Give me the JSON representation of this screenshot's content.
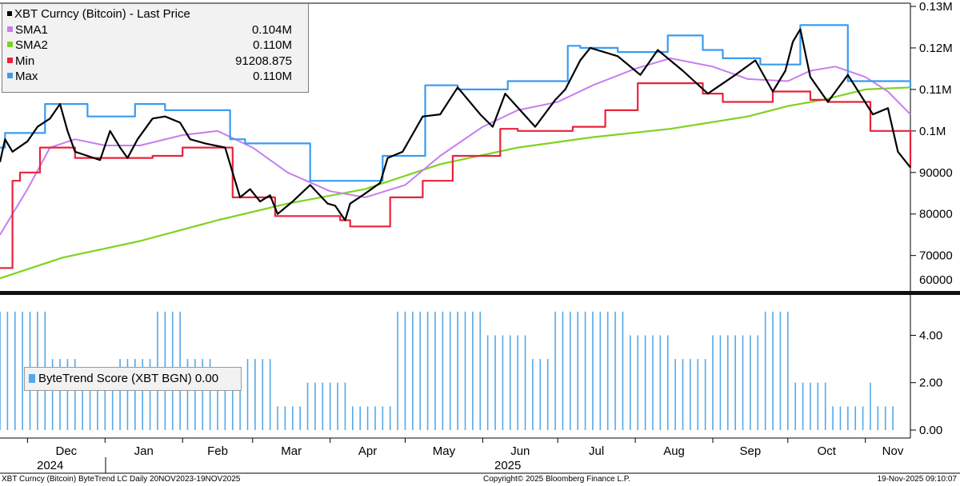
{
  "chart_data": [
    {
      "type": "line",
      "title": "XBT Curncy (Bitcoin) - Last Price",
      "y_scale": "linear",
      "ylim": [
        58000,
        130000
      ],
      "y_ticks": [
        60000,
        70000,
        80000,
        90000,
        100000,
        110000,
        120000,
        130000
      ],
      "y_tick_labels": [
        "60000",
        "70000",
        "80000",
        "90000",
        "0.1M",
        "0.11M",
        "0.12M",
        "0.13M"
      ],
      "grid": false,
      "legend_position": "top-left",
      "series": [
        {
          "name": "XBT Curncy (Bitcoin) - Last Price",
          "legend_value": "",
          "color": "#000000",
          "x": [
            "2024-11-20",
            "2024-11-22",
            "2024-11-25",
            "2024-12-01",
            "2024-12-05",
            "2024-12-10",
            "2024-12-14",
            "2024-12-17",
            "2024-12-20",
            "2024-12-25",
            "2024-12-30",
            "2025-01-03",
            "2025-01-07",
            "2025-01-10",
            "2025-01-14",
            "2025-01-20",
            "2025-01-25",
            "2025-01-31",
            "2025-02-04",
            "2025-02-10",
            "2025-02-18",
            "2025-02-24",
            "2025-02-28",
            "2025-03-04",
            "2025-03-08",
            "2025-03-11",
            "2025-03-17",
            "2025-03-24",
            "2025-03-31",
            "2025-04-03",
            "2025-04-07",
            "2025-04-09",
            "2025-04-14",
            "2025-04-21",
            "2025-04-24",
            "2025-04-30",
            "2025-05-08",
            "2025-05-15",
            "2025-05-22",
            "2025-05-31",
            "2025-06-05",
            "2025-06-10",
            "2025-06-22",
            "2025-06-30",
            "2025-07-04",
            "2025-07-10",
            "2025-07-14",
            "2025-07-25",
            "2025-07-31",
            "2025-08-03",
            "2025-08-10",
            "2025-08-14",
            "2025-08-20",
            "2025-08-30",
            "2025-09-10",
            "2025-09-18",
            "2025-09-25",
            "2025-09-30",
            "2025-10-03",
            "2025-10-06",
            "2025-10-10",
            "2025-10-17",
            "2025-10-25",
            "2025-11-04",
            "2025-11-10",
            "2025-11-14",
            "2025-11-19"
          ],
          "values": [
            92500,
            98000,
            95000,
            97500,
            101000,
            103000,
            106500,
            100000,
            95000,
            94000,
            93000,
            100000,
            96000,
            93500,
            98000,
            103000,
            103500,
            102000,
            98000,
            97000,
            96000,
            84000,
            86000,
            83000,
            84500,
            80000,
            83000,
            87000,
            82500,
            82000,
            78500,
            82500,
            84500,
            87500,
            93500,
            95000,
            103500,
            104000,
            110500,
            104000,
            101000,
            109000,
            101000,
            107500,
            110000,
            117000,
            120000,
            118000,
            115000,
            113500,
            119500,
            117500,
            114500,
            109000,
            113500,
            117000,
            109500,
            114500,
            121500,
            124500,
            113000,
            107000,
            113500,
            104000,
            105500,
            95000,
            91200
          ]
        },
        {
          "name": "SMA1",
          "legend_value": "0.104M",
          "color": "#c77ef0",
          "x": [
            "2024-11-20",
            "2024-12-01",
            "2024-12-10",
            "2024-12-20",
            "2025-01-01",
            "2025-01-15",
            "2025-02-01",
            "2025-02-15",
            "2025-03-01",
            "2025-03-15",
            "2025-04-01",
            "2025-04-15",
            "2025-05-01",
            "2025-05-15",
            "2025-06-01",
            "2025-06-15",
            "2025-07-01",
            "2025-07-15",
            "2025-08-01",
            "2025-08-15",
            "2025-09-01",
            "2025-09-15",
            "2025-10-01",
            "2025-10-10",
            "2025-10-20",
            "2025-11-01",
            "2025-11-10",
            "2025-11-19"
          ],
          "values": [
            75000,
            86000,
            96000,
            98000,
            96500,
            96500,
            99000,
            100000,
            96000,
            90000,
            85500,
            84000,
            87000,
            94000,
            101000,
            105000,
            107000,
            111000,
            115000,
            117500,
            115500,
            112500,
            112000,
            114500,
            115500,
            113000,
            109500,
            104000
          ]
        },
        {
          "name": "SMA2",
          "legend_value": "0.110M",
          "color": "#7ed321",
          "x": [
            "2024-11-20",
            "2024-12-15",
            "2025-01-15",
            "2025-02-15",
            "2025-03-15",
            "2025-04-15",
            "2025-05-15",
            "2025-06-15",
            "2025-07-15",
            "2025-08-15",
            "2025-09-15",
            "2025-10-01",
            "2025-10-15",
            "2025-11-01",
            "2025-11-19"
          ],
          "values": [
            64500,
            69500,
            73500,
            78500,
            82500,
            86000,
            92000,
            96000,
            98500,
            100500,
            103500,
            106000,
            107500,
            110000,
            110500
          ]
        },
        {
          "name": "Min",
          "legend_value": "91208.875",
          "color": "#e8233b",
          "step": true,
          "x": [
            "2024-11-20",
            "2024-11-25",
            "2024-11-28",
            "2024-12-06",
            "2024-12-20",
            "2025-01-20",
            "2025-02-01",
            "2025-02-21",
            "2025-03-01",
            "2025-03-10",
            "2025-03-24",
            "2025-04-05",
            "2025-04-09",
            "2025-04-25",
            "2025-05-08",
            "2025-05-20",
            "2025-06-08",
            "2025-06-15",
            "2025-07-07",
            "2025-07-20",
            "2025-08-02",
            "2025-08-28",
            "2025-09-05",
            "2025-09-25",
            "2025-10-10",
            "2025-10-17",
            "2025-11-03",
            "2025-11-19"
          ],
          "values": [
            67000,
            88000,
            90000,
            96000,
            93500,
            94000,
            96000,
            84000,
            84000,
            79500,
            79500,
            78500,
            77000,
            84000,
            88000,
            94000,
            100500,
            100000,
            101000,
            105000,
            111500,
            109000,
            107000,
            109500,
            107500,
            107000,
            100000,
            91200
          ]
        },
        {
          "name": "Max",
          "legend_value": "0.110M",
          "color": "#3a9bf0",
          "step": true,
          "x": [
            "2024-11-20",
            "2024-11-22",
            "2024-12-01",
            "2024-12-08",
            "2024-12-25",
            "2025-01-05",
            "2025-01-13",
            "2025-01-25",
            "2025-02-20",
            "2025-02-26",
            "2025-03-24",
            "2025-04-15",
            "2025-04-22",
            "2025-05-09",
            "2025-05-22",
            "2025-06-11",
            "2025-07-05",
            "2025-07-10",
            "2025-07-25",
            "2025-08-14",
            "2025-08-28",
            "2025-09-05",
            "2025-09-20",
            "2025-10-06",
            "2025-10-25",
            "2025-11-10",
            "2025-11-19"
          ],
          "values": [
            96000,
            99500,
            99500,
            106500,
            103500,
            103500,
            106500,
            105000,
            98000,
            97000,
            88000,
            88000,
            94000,
            111000,
            110000,
            112000,
            120500,
            120000,
            119000,
            123000,
            119500,
            117500,
            116000,
            125500,
            112000,
            112000,
            110500
          ]
        }
      ]
    },
    {
      "type": "bar",
      "ylim": [
        0,
        5.4
      ],
      "y_ticks": [
        0,
        2,
        4
      ],
      "y_tick_labels": [
        "0.00",
        "2.00",
        "4.00"
      ],
      "grid": false,
      "legend_position": "middle-left",
      "series": [
        {
          "name": "ByteTrend Score (XBT BGN)",
          "legend_value": "0.00",
          "color": "#55a8e8",
          "x": [
            "2024-11-20",
            "2024-12-11",
            "2024-12-22",
            "2025-01-05",
            "2025-01-20",
            "2025-02-03",
            "2025-02-15",
            "2025-02-26",
            "2025-03-10",
            "2025-03-21",
            "2025-04-08",
            "2025-04-28",
            "2025-06-02",
            "2025-06-20",
            "2025-06-30",
            "2025-07-30",
            "2025-08-15",
            "2025-09-01",
            "2025-09-20",
            "2025-10-04",
            "2025-10-18",
            "2025-11-01",
            "2025-11-05"
          ],
          "values": [
            5,
            3,
            2,
            3,
            5,
            3,
            2,
            3,
            1,
            2,
            1,
            5,
            4,
            3,
            5,
            4,
            3,
            4,
            5,
            2,
            1,
            2,
            1
          ]
        }
      ]
    }
  ],
  "x_axis": {
    "months": [
      "Dec",
      "Jan",
      "Feb",
      "Mar",
      "Apr",
      "May",
      "Jun",
      "Jul",
      "Aug",
      "Sep",
      "Oct",
      "Nov"
    ],
    "years": [
      "2024",
      "2025"
    ]
  },
  "footer": {
    "left": "XBT Curncy (Bitcoin) ByteTrend LC Daily 20NOV2023-19NOV2025",
    "center": "Copyright© 2025 Bloomberg Finance L.P.",
    "right": "19-Nov-2025 09:10:07"
  }
}
